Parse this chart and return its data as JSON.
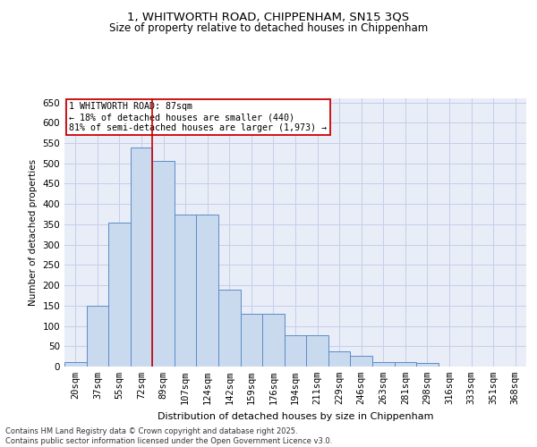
{
  "title1": "1, WHITWORTH ROAD, CHIPPENHAM, SN15 3QS",
  "title2": "Size of property relative to detached houses in Chippenham",
  "xlabel": "Distribution of detached houses by size in Chippenham",
  "ylabel": "Number of detached properties",
  "categories": [
    "20sqm",
    "37sqm",
    "55sqm",
    "72sqm",
    "89sqm",
    "107sqm",
    "124sqm",
    "142sqm",
    "159sqm",
    "176sqm",
    "194sqm",
    "211sqm",
    "229sqm",
    "246sqm",
    "263sqm",
    "281sqm",
    "298sqm",
    "316sqm",
    "333sqm",
    "351sqm",
    "368sqm"
  ],
  "values": [
    12,
    150,
    355,
    540,
    505,
    375,
    375,
    190,
    130,
    130,
    78,
    78,
    37,
    27,
    11,
    11,
    9,
    0,
    0,
    0,
    0
  ],
  "bar_color": "#c9d9ee",
  "bar_edge_color": "#5b8cc8",
  "grid_color": "#c5cfe8",
  "background_color": "#e8edf8",
  "vline_x_index": 4,
  "vline_color": "#cc0000",
  "annotation_text": "1 WHITWORTH ROAD: 87sqm\n← 18% of detached houses are smaller (440)\n81% of semi-detached houses are larger (1,973) →",
  "annotation_box_facecolor": "#ffffff",
  "annotation_box_edgecolor": "#cc0000",
  "ylim": [
    0,
    660
  ],
  "yticks": [
    0,
    50,
    100,
    150,
    200,
    250,
    300,
    350,
    400,
    450,
    500,
    550,
    600,
    650
  ],
  "footnote": "Contains HM Land Registry data © Crown copyright and database right 2025.\nContains public sector information licensed under the Open Government Licence v3.0."
}
